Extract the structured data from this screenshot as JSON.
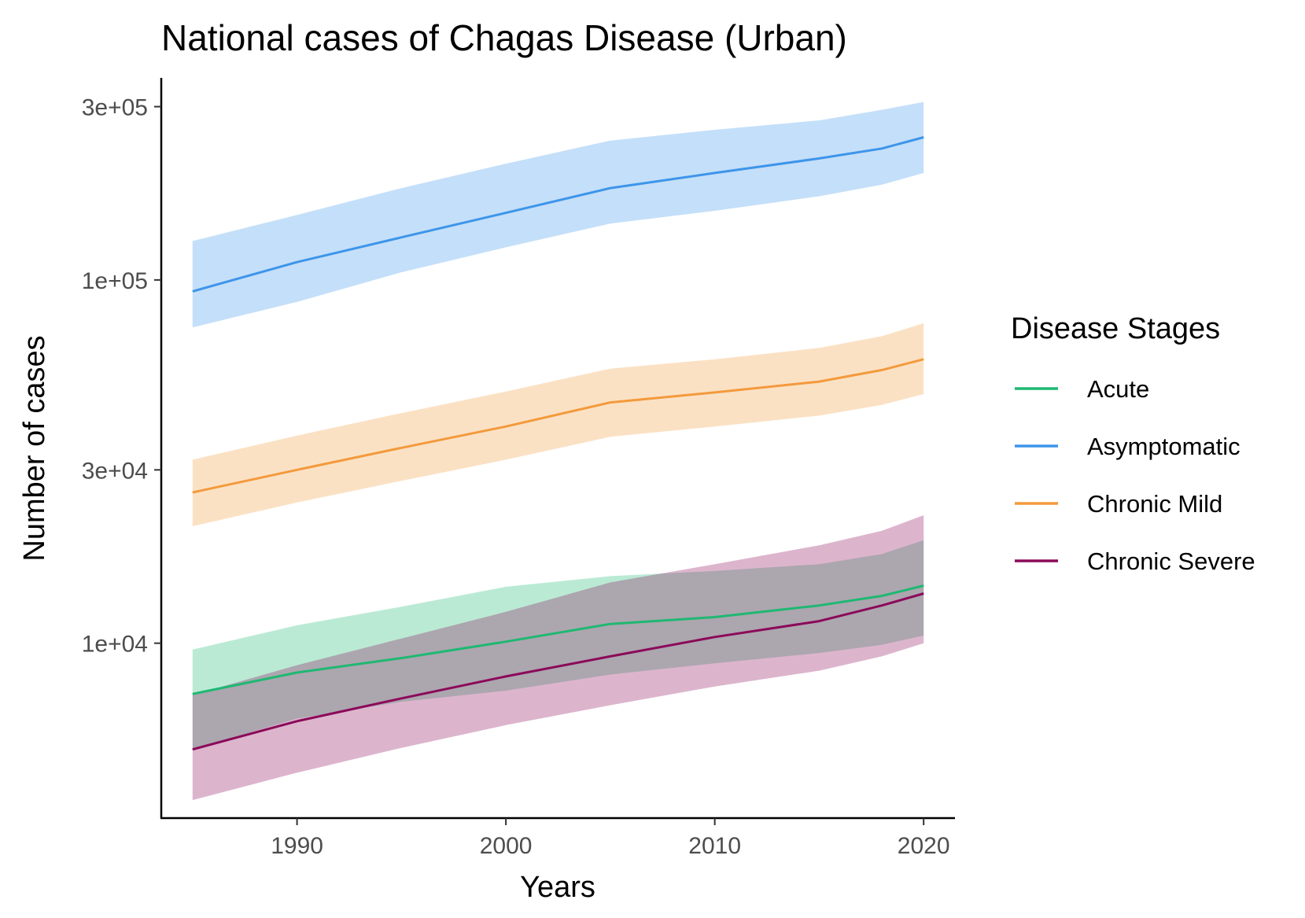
{
  "chart_data": {
    "type": "line",
    "title": "National cases of Chagas Disease (Urban)",
    "xlabel": "Years",
    "ylabel": "Number of cases",
    "y_scale": "log",
    "xlim": [
      1983.5,
      2021.5
    ],
    "ylim": [
      3300,
      360000
    ],
    "x_ticks": [
      1990,
      2000,
      2010,
      2020
    ],
    "x_tick_labels": [
      "1990",
      "2000",
      "2010",
      "2020"
    ],
    "y_ticks": [
      10000,
      30000,
      100000,
      300000
    ],
    "y_tick_labels": [
      "1e+04",
      "3e+04",
      "1e+05",
      "3e+05"
    ],
    "grid": false,
    "legend": {
      "title": "Disease Stages",
      "position": "right"
    },
    "x": [
      1985,
      1990,
      1995,
      2000,
      2005,
      2010,
      2015,
      2018,
      2020
    ],
    "series": [
      {
        "name": "Acute",
        "color": "#1fb872",
        "band_color": "#b2efd2",
        "values": [
          7250,
          8300,
          9100,
          10100,
          11300,
          11800,
          12700,
          13500,
          14400
        ],
        "lower": [
          5100,
          6200,
          6900,
          7400,
          8200,
          8800,
          9400,
          9900,
          10500
        ],
        "upper": [
          9600,
          11200,
          12600,
          14300,
          15300,
          15800,
          16500,
          17600,
          19200
        ]
      },
      {
        "name": "Asymptomatic",
        "color": "#3d95ea",
        "band_color": "#c2e0fa",
        "values": [
          93000,
          112000,
          131000,
          153000,
          179000,
          197000,
          216000,
          230000,
          247000
        ],
        "lower": [
          74000,
          87000,
          105000,
          123000,
          143000,
          155000,
          170000,
          183000,
          197000
        ],
        "upper": [
          128000,
          151000,
          179000,
          209000,
          242000,
          259000,
          275000,
          294000,
          309000
        ]
      },
      {
        "name": "Chronic Mild",
        "color": "#f39a3c",
        "band_color": "#fde0c1",
        "values": [
          26000,
          30000,
          34500,
          39500,
          46000,
          49000,
          52500,
          56500,
          60500
        ],
        "lower": [
          21000,
          24400,
          28000,
          32000,
          37000,
          39500,
          42300,
          45300,
          48500
        ],
        "upper": [
          32000,
          37300,
          43000,
          49300,
          57000,
          60500,
          65000,
          70000,
          76000
        ]
      },
      {
        "name": "Chronic Severe",
        "color": "#8b0a59",
        "band_color": "#e1b3cf",
        "values": [
          5100,
          6100,
          7050,
          8100,
          9200,
          10400,
          11500,
          12700,
          13700
        ],
        "lower": [
          3700,
          4400,
          5150,
          5950,
          6750,
          7600,
          8400,
          9200,
          10000
        ],
        "upper": [
          7200,
          8700,
          10300,
          12200,
          14700,
          16500,
          18600,
          20400,
          22500
        ]
      }
    ]
  }
}
